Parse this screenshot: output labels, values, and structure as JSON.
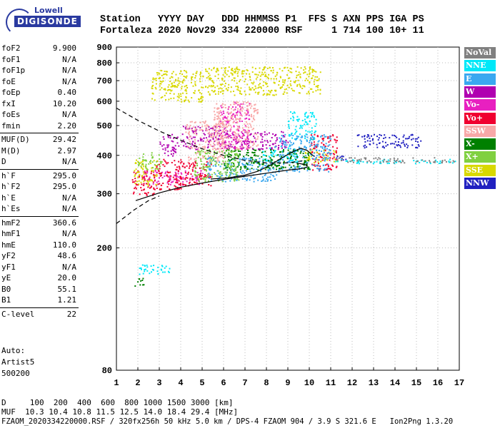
{
  "logo": {
    "line1": "Lowell",
    "line2": "DIGISONDE"
  },
  "header": {
    "line1": "Station   YYYY DAY   DDD HHMMSS P1  FFS S AXN PPS IGA PS",
    "line2": "Fortaleza 2020 Nov29 334 220000 RSF     1 714 100 10+ 11"
  },
  "params": [
    [
      {
        "name": "foF2",
        "value": "9.900"
      },
      {
        "name": "foF1",
        "value": "N/A"
      },
      {
        "name": "foF1p",
        "value": "N/A"
      },
      {
        "name": "foE",
        "value": "N/A"
      },
      {
        "name": "foEp",
        "value": "0.40"
      },
      {
        "name": "fxI",
        "value": "10.20"
      },
      {
        "name": "foEs",
        "value": "N/A"
      },
      {
        "name": "fmin",
        "value": "2.20"
      }
    ],
    [
      {
        "name": "MUF(D)",
        "value": "29.42"
      },
      {
        "name": "M(D)",
        "value": "2.97"
      },
      {
        "name": "D",
        "value": "N/A"
      }
    ],
    [
      {
        "name": "h`F",
        "value": "295.0"
      },
      {
        "name": "h`F2",
        "value": "295.0"
      },
      {
        "name": "h`E",
        "value": "N/A"
      },
      {
        "name": "h`Es",
        "value": "N/A"
      }
    ],
    [
      {
        "name": "hmF2",
        "value": "360.6"
      },
      {
        "name": "hmF1",
        "value": "N/A"
      },
      {
        "name": "hmE",
        "value": "110.0"
      },
      {
        "name": "yF2",
        "value": "48.6"
      },
      {
        "name": "yF1",
        "value": "N/A"
      },
      {
        "name": "yE",
        "value": "20.0"
      },
      {
        "name": "B0",
        "value": "55.1"
      },
      {
        "name": "B1",
        "value": "1.21"
      }
    ],
    [
      {
        "name": "C-level",
        "value": "22"
      }
    ]
  ],
  "auto": {
    "line1": "Auto:",
    "line2": "Artist5",
    "line3": "500200"
  },
  "footer": {
    "line1": "D     100  200  400  600  800 1000 1500 3000 [km]",
    "line2": "MUF  10.3 10.4 10.8 11.5 12.5 14.0 18.4 29.4 [MHz]",
    "line3": "FZAOM_2020334220000.RSF / 320fx256h 50 kHz 5.0 km / DPS-4 FZAOM 904 / 3.9 S 321.6 E   Ion2Png 1.3.20"
  },
  "colors": {
    "NoVal": "#808080",
    "NNE": "#00e8f8",
    "E": "#3aa8f0",
    "W": "#b000b0",
    "Vo-": "#e820c0",
    "Vo+": "#f00030",
    "SSW": "#f8a8a8",
    "X-": "#008000",
    "X+": "#80d040",
    "SSE": "#d8d800",
    "NNW": "#2020c0"
  },
  "chart_data": {
    "type": "scatter",
    "title": "",
    "xlabel": "",
    "ylabel": "",
    "xlim": [
      1,
      17
    ],
    "ylim": [
      80,
      900
    ],
    "x_ticks": [
      1,
      2,
      3,
      4,
      5,
      6,
      7,
      8,
      9,
      10,
      11,
      12,
      13,
      14,
      15,
      16,
      17
    ],
    "y_ticks": [
      80,
      200,
      300,
      400,
      500,
      600,
      700,
      800,
      900
    ],
    "y_scale": "log",
    "grid": "dotted",
    "legend": [
      "NoVal",
      "NNE",
      "E",
      "W",
      "Vo-",
      "Vo+",
      "SSW",
      "X-",
      "X+",
      "SSE",
      "NNW"
    ],
    "legend_placement": "right",
    "series": [
      {
        "name": "W",
        "blocks": [
          [
            3.0,
            3.9,
            400,
            470
          ],
          [
            4.0,
            6.2,
            420,
            500
          ],
          [
            6.0,
            9.0,
            420,
            480
          ]
        ]
      },
      {
        "name": "Vo-",
        "blocks": [
          [
            5.8,
            7.2,
            420,
            600
          ],
          [
            2.2,
            5.0,
            320,
            360
          ]
        ]
      },
      {
        "name": "Vo+",
        "blocks": [
          [
            1.7,
            2.8,
            298,
            360
          ],
          [
            2.8,
            4.2,
            310,
            390
          ],
          [
            4.2,
            5.4,
            320,
            390
          ],
          [
            10.0,
            11.3,
            360,
            470
          ]
        ]
      },
      {
        "name": "SSW",
        "blocks": [
          [
            5.5,
            7.6,
            420,
            600
          ],
          [
            4.2,
            6.0,
            380,
            520
          ]
        ]
      },
      {
        "name": "SSE",
        "blocks": [
          [
            2.6,
            5.0,
            600,
            760
          ],
          [
            5.0,
            10.5,
            630,
            780
          ],
          [
            1.8,
            2.9,
            320,
            390
          ],
          [
            9.7,
            11.3,
            380,
            420
          ]
        ]
      },
      {
        "name": "NNE",
        "blocks": [
          [
            9.0,
            10.3,
            450,
            560
          ],
          [
            7.8,
            9.5,
            380,
            430
          ],
          [
            11.2,
            16.8,
            378,
            390
          ],
          [
            2.0,
            3.5,
            165,
            178
          ]
        ]
      },
      {
        "name": "E",
        "blocks": [
          [
            8.5,
            11.0,
            355,
            470
          ],
          [
            5.2,
            8.5,
            330,
            395
          ]
        ]
      },
      {
        "name": "X-",
        "blocks": [
          [
            6.0,
            10.0,
            360,
            420
          ],
          [
            1.8,
            2.3,
            150,
            160
          ]
        ]
      },
      {
        "name": "X+",
        "blocks": [
          [
            2.0,
            3.1,
            360,
            410
          ],
          [
            4.6,
            6.7,
            330,
            420
          ]
        ]
      },
      {
        "name": "NNW",
        "blocks": [
          [
            12.2,
            15.2,
            425,
            470
          ],
          [
            11.2,
            11.8,
            380,
            400
          ]
        ]
      },
      {
        "name": "NoVal",
        "blocks": [
          [
            11.2,
            16.8,
            380,
            395
          ]
        ]
      }
    ],
    "profile_solid": [
      [
        1.9,
        285
      ],
      [
        3.0,
        302
      ],
      [
        4.0,
        315
      ],
      [
        5.0,
        325
      ],
      [
        6.0,
        334
      ],
      [
        7.0,
        342
      ],
      [
        8.0,
        350
      ],
      [
        9.0,
        358
      ],
      [
        9.6,
        362
      ],
      [
        9.9,
        366
      ],
      [
        9.9,
        372
      ],
      [
        9.4,
        378
      ]
    ],
    "trace_solid": [
      [
        5.4,
        335
      ],
      [
        6.2,
        338
      ],
      [
        7.0,
        345
      ],
      [
        7.6,
        355
      ],
      [
        8.2,
        372
      ],
      [
        8.7,
        392
      ],
      [
        9.2,
        410
      ],
      [
        9.6,
        422
      ],
      [
        9.9,
        415
      ],
      [
        10.2,
        398
      ]
    ],
    "profile_dashed_upper": [
      [
        1.0,
        570
      ],
      [
        2.0,
        520
      ],
      [
        3.0,
        480
      ],
      [
        4.0,
        448
      ],
      [
        5.0,
        420
      ],
      [
        6.0,
        400
      ],
      [
        7.0,
        385
      ],
      [
        8.0,
        378
      ],
      [
        9.0,
        378
      ],
      [
        9.8,
        385
      ]
    ],
    "profile_dashed_lower": [
      [
        1.0,
        240
      ],
      [
        1.8,
        265
      ],
      [
        2.5,
        285
      ],
      [
        3.0,
        295
      ]
    ]
  }
}
